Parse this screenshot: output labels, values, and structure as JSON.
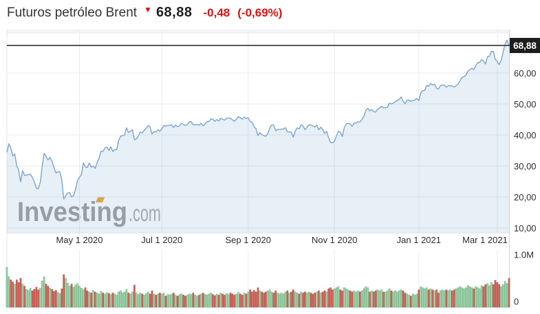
{
  "header": {
    "title": "Futuros petróleo Brent",
    "arrow_icon": "▼",
    "price": "68,88",
    "change": "-0,48",
    "change_pct": "(-0,69%)"
  },
  "watermark": {
    "brand": "Investing",
    "suffix": ".com"
  },
  "colors": {
    "red_text": "#e01010",
    "line": "#7aa5d1",
    "fill": "rgba(122,165,209,0.18)",
    "grid": "#ebebf0",
    "band": "#f3f3f8",
    "up_fill": "#abd8b6",
    "up_stroke": "#6cb47e",
    "down_fill": "#d5685f",
    "down_stroke": "#bb5048",
    "price_line": "#58585a",
    "badge_bg": "#1d1d1d",
    "badge_text": "#ffffff",
    "axis_text": "#2d2d2d",
    "border_right": "#c9d4df",
    "border_light": "#e6e6ec",
    "watermark_text": "#9b9b9b",
    "watermark_suffix": "#a9a9a9",
    "watermark_accent": "#eca436"
  },
  "chart_data": [
    {
      "type": "area",
      "name": "price",
      "title": "Futuros petróleo Brent",
      "y_axis_side": "right",
      "grid": true,
      "last_price": "68,88",
      "last_price_value": 68.88,
      "ylim": [
        7,
        73
      ],
      "x_ticks": [
        {
          "label": "May 1 2020",
          "i": 37
        },
        {
          "label": "Jul 1 2020",
          "i": 79
        },
        {
          "label": "Sep 1 2020",
          "i": 123
        },
        {
          "label": "Nov 1 2020",
          "i": 167
        },
        {
          "label": "Jan 1 2021",
          "i": 210
        },
        {
          "label": "Mar 1 2021",
          "i": 250
        }
      ],
      "y_ticks": [
        {
          "label": "60,00",
          "value": 60
        },
        {
          "label": "50,00",
          "value": 50
        },
        {
          "label": "40,00",
          "value": 40
        },
        {
          "label": "30,00",
          "value": 30
        },
        {
          "label": "20,00",
          "value": 20
        },
        {
          "label": "10,00",
          "value": 10
        }
      ],
      "prices": [
        34.4,
        37.2,
        35.8,
        33.2,
        33.9,
        30.1,
        28.7,
        24.9,
        28.5,
        27.0,
        27.0,
        27.2,
        27.4,
        26.3,
        24.9,
        22.8,
        22.7,
        24.7,
        29.9,
        34.1,
        33.1,
        31.9,
        32.8,
        31.5,
        29.6,
        27.7,
        28.1,
        28.1,
        25.6,
        19.3,
        20.4,
        21.3,
        21.4,
        20.0,
        20.5,
        22.5,
        25.3,
        26.4,
        27.2,
        31.0,
        29.7,
        29.5,
        31.0,
        29.6,
        30.0,
        29.2,
        31.1,
        32.5,
        34.8,
        34.7,
        35.8,
        36.1,
        35.1,
        36.2,
        34.7,
        35.3,
        35.3,
        38.3,
        39.6,
        39.8,
        40.0,
        42.3,
        40.8,
        41.2,
        41.7,
        38.5,
        38.7,
        39.7,
        41.0,
        40.7,
        41.5,
        42.2,
        43.1,
        42.6,
        40.3,
        41.1,
        41.0,
        41.7,
        41.2,
        42.0,
        43.1,
        42.8,
        43.1,
        43.1,
        43.3,
        42.4,
        43.2,
        42.7,
        42.9,
        43.8,
        43.4,
        43.1,
        43.3,
        44.3,
        44.3,
        43.3,
        43.3,
        43.4,
        43.2,
        43.8,
        42.9,
        43.5,
        44.2,
        44.4,
        45.2,
        45.1,
        44.4,
        45.0,
        44.5,
        45.4,
        45.0,
        44.8,
        45.4,
        45.5,
        45.4,
        44.9,
        44.4,
        45.1,
        45.9,
        45.6,
        45.1,
        45.8,
        45.3,
        45.6,
        44.4,
        44.1,
        42.7,
        42.0,
        39.8,
        40.8,
        40.1,
        39.8,
        39.6,
        40.5,
        42.2,
        43.3,
        43.2,
        41.4,
        41.7,
        41.8,
        41.9,
        41.9,
        42.4,
        41.0,
        41.0,
        40.9,
        39.3,
        41.3,
        42.3,
        42.0,
        43.3,
        42.9,
        41.7,
        42.5,
        43.3,
        43.2,
        42.9,
        42.6,
        43.2,
        41.7,
        42.5,
        41.8,
        40.5,
        41.2,
        39.1,
        37.6,
        37.5,
        38.0,
        39.7,
        41.2,
        40.9,
        39.5,
        42.4,
        43.6,
        43.8,
        43.5,
        42.8,
        43.8,
        43.8,
        44.3,
        44.2,
        45.0,
        46.0,
        47.9,
        48.6,
        47.8,
        48.2,
        47.6,
        47.4,
        48.3,
        48.7,
        49.3,
        48.8,
        48.8,
        48.9,
        50.3,
        50.0,
        50.3,
        50.8,
        51.1,
        51.5,
        52.3,
        50.9,
        50.1,
        51.2,
        51.3,
        50.9,
        51.1,
        51.3,
        51.8,
        51.1,
        53.6,
        54.3,
        54.4,
        56.0,
        55.7,
        56.6,
        56.1,
        56.4,
        55.1,
        54.8,
        55.9,
        56.1,
        56.1,
        55.4,
        55.9,
        55.9,
        55.8,
        55.5,
        55.9,
        56.4,
        57.5,
        58.5,
        58.8,
        59.3,
        60.6,
        61.1,
        61.5,
        61.1,
        62.4,
        63.3,
        63.4,
        64.3,
        63.9,
        62.9,
        65.2,
        65.4,
        67.0,
        66.9,
        64.4,
        63.7,
        62.7,
        64.1,
        66.7,
        69.4,
        70.6,
        68.88
      ]
    },
    {
      "type": "bar",
      "name": "volume",
      "unit": "millions",
      "ylim": [
        0,
        1.1
      ],
      "color_rule": "green if close >= previous close, red otherwise",
      "y_ticks": [
        {
          "label": "1.0M",
          "value": 1.0
        },
        {
          "label": "0",
          "value": 0
        }
      ],
      "volumes": [
        0.76,
        0.58,
        0.52,
        0.48,
        0.44,
        0.52,
        0.47,
        0.55,
        0.44,
        0.4,
        0.34,
        0.32,
        0.36,
        0.31,
        0.34,
        0.38,
        0.33,
        0.36,
        0.5,
        0.58,
        0.44,
        0.4,
        0.36,
        0.34,
        0.3,
        0.32,
        0.28,
        0.26,
        0.35,
        0.62,
        0.55,
        0.46,
        0.4,
        0.44,
        0.38,
        0.42,
        0.45,
        0.4,
        0.36,
        0.33,
        0.37,
        0.31,
        0.29,
        0.27,
        0.32,
        0.29,
        0.27,
        0.25,
        0.3,
        0.27,
        0.25,
        0.28,
        0.26,
        0.24,
        0.27,
        0.25,
        0.23,
        0.29,
        0.31,
        0.27,
        0.29,
        0.34,
        0.27,
        0.25,
        0.29,
        0.42,
        0.27,
        0.24,
        0.27,
        0.25,
        0.23,
        0.26,
        0.29,
        0.25,
        0.31,
        0.25,
        0.23,
        0.25,
        0.27,
        0.25,
        0.27,
        0.21,
        0.24,
        0.23,
        0.25,
        0.27,
        0.23,
        0.21,
        0.24,
        0.25,
        0.23,
        0.21,
        0.23,
        0.25,
        0.24,
        0.27,
        0.23,
        0.21,
        0.23,
        0.25,
        0.27,
        0.24,
        0.23,
        0.25,
        0.27,
        0.24,
        0.22,
        0.25,
        0.23,
        0.27,
        0.25,
        0.23,
        0.26,
        0.24,
        0.27,
        0.25,
        0.23,
        0.25,
        0.28,
        0.25,
        0.23,
        0.27,
        0.25,
        0.29,
        0.33,
        0.29,
        0.32,
        0.29,
        0.37,
        0.31,
        0.29,
        0.27,
        0.29,
        0.31,
        0.33,
        0.29,
        0.27,
        0.31,
        0.27,
        0.25,
        0.27,
        0.25,
        0.29,
        0.31,
        0.27,
        0.29,
        0.33,
        0.29,
        0.27,
        0.25,
        0.29,
        0.27,
        0.29,
        0.27,
        0.29,
        0.27,
        0.25,
        0.27,
        0.29,
        0.31,
        0.27,
        0.29,
        0.31,
        0.29,
        0.35,
        0.37,
        0.33,
        0.35,
        0.37,
        0.39,
        0.33,
        0.31,
        0.37,
        0.35,
        0.33,
        0.31,
        0.29,
        0.31,
        0.29,
        0.31,
        0.29,
        0.31,
        0.35,
        0.39,
        0.37,
        0.29,
        0.31,
        0.29,
        0.31,
        0.33,
        0.31,
        0.33,
        0.29,
        0.29,
        0.31,
        0.35,
        0.31,
        0.29,
        0.31,
        0.29,
        0.31,
        0.33,
        0.31,
        0.27,
        0.25,
        0.23,
        0.21,
        0.25,
        0.23,
        0.25,
        0.33,
        0.39,
        0.37,
        0.35,
        0.37,
        0.33,
        0.35,
        0.33,
        0.31,
        0.33,
        0.27,
        0.31,
        0.33,
        0.31,
        0.33,
        0.31,
        0.33,
        0.31,
        0.33,
        0.35,
        0.37,
        0.39,
        0.37,
        0.35,
        0.37,
        0.41,
        0.39,
        0.37,
        0.35,
        0.39,
        0.37,
        0.35,
        0.41,
        0.39,
        0.43,
        0.45,
        0.41,
        0.47,
        0.43,
        0.51,
        0.47,
        0.43,
        0.39,
        0.43,
        0.49,
        0.45,
        0.55
      ]
    }
  ]
}
